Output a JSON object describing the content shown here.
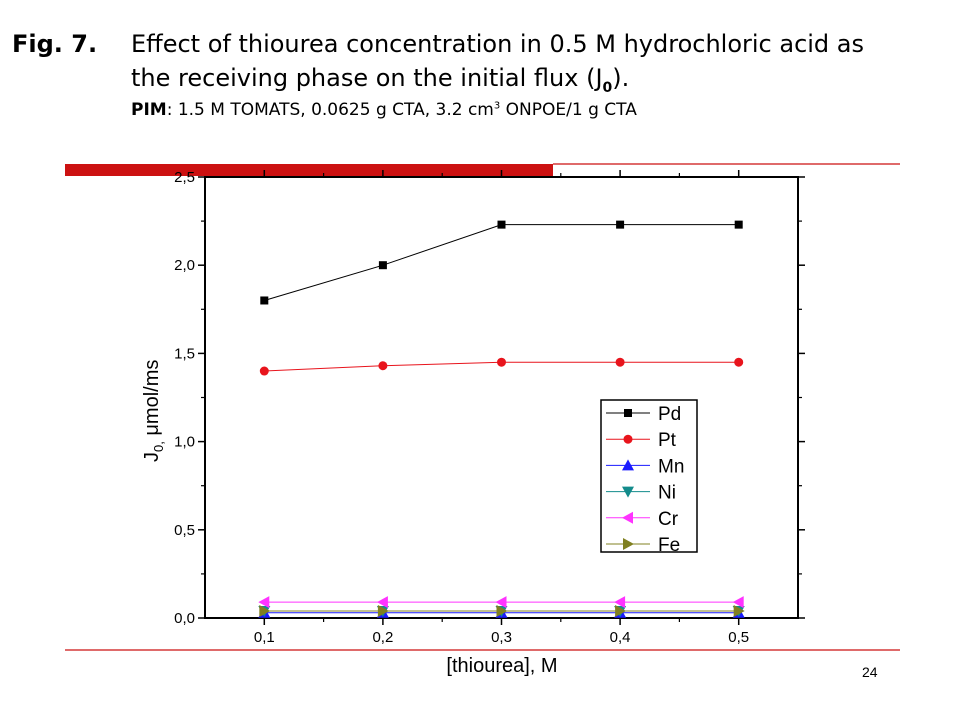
{
  "caption": {
    "fig_label": "Fig. 7.",
    "line1": "Effect of thiourea concentration in 0.5 M hydrochloric acid as",
    "line2_text": "the receiving phase on the initial flux (J",
    "line2_sub": "0",
    "line2_end": ").",
    "pim_label": "PIM",
    "pim_text": ": 1.5 M TOMATS, 0.0625 g CTA, 3.2 cm",
    "pim_sup": "3",
    "pim_end": " ONPOE/1 g CTA"
  },
  "page_number": "24",
  "chart_data": {
    "type": "line",
    "xlabel": "[thiourea], M",
    "ylabel_main": "J",
    "ylabel_sub": "0,",
    "ylabel_unit": " μmol/ms",
    "x": [
      0.1,
      0.2,
      0.3,
      0.4,
      0.5
    ],
    "xlim": [
      0.05,
      0.55
    ],
    "ylim": [
      0,
      2.5
    ],
    "xticks": [
      "0,1",
      "0,2",
      "0,3",
      "0,4",
      "0,5"
    ],
    "yticks": [
      "0,0",
      "0,5",
      "1,0",
      "1,5",
      "2,0",
      "2,5"
    ],
    "legend_position": "lower-right",
    "series": [
      {
        "name": "Pd",
        "color": "#000000",
        "marker": "square",
        "values": [
          1.8,
          2.0,
          2.23,
          2.23,
          2.23
        ]
      },
      {
        "name": "Pt",
        "color": "#e8141c",
        "marker": "circle",
        "values": [
          1.4,
          1.43,
          1.45,
          1.45,
          1.45
        ]
      },
      {
        "name": "Mn",
        "color": "#1a1aff",
        "marker": "triangle-up",
        "values": [
          0.03,
          0.03,
          0.03,
          0.03,
          0.03
        ]
      },
      {
        "name": "Ni",
        "color": "#138b8b",
        "marker": "triangle-down",
        "values": [
          0.04,
          0.04,
          0.04,
          0.04,
          0.04
        ]
      },
      {
        "name": "Cr",
        "color": "#ff33ff",
        "marker": "triangle-left",
        "values": [
          0.09,
          0.09,
          0.09,
          0.09,
          0.09
        ]
      },
      {
        "name": "Fe",
        "color": "#808020",
        "marker": "triangle-right",
        "values": [
          0.04,
          0.04,
          0.04,
          0.04,
          0.04
        ]
      }
    ]
  }
}
